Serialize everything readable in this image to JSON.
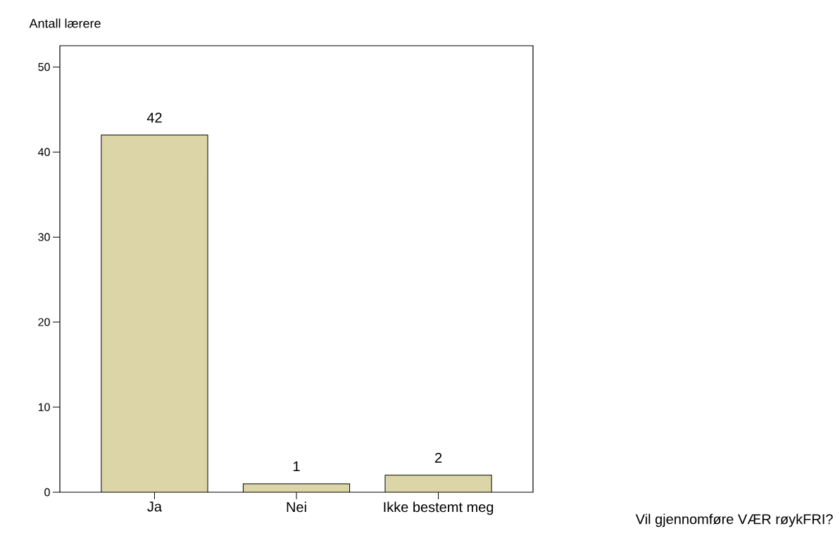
{
  "chart_data": {
    "type": "bar",
    "ylabel": "Antall lærere",
    "annotations": [
      "Vil gjennomføre  VÆR røykFRI?"
    ],
    "categories": [
      "Ja",
      "Nei",
      "Ikke bestemt meg"
    ],
    "values": [
      42,
      1,
      2
    ],
    "color": "#dbd5a7",
    "ylim": [
      0,
      52.5
    ],
    "yticks": [
      0,
      10,
      20,
      30,
      40,
      50
    ],
    "data_labels": true,
    "grid": false
  }
}
